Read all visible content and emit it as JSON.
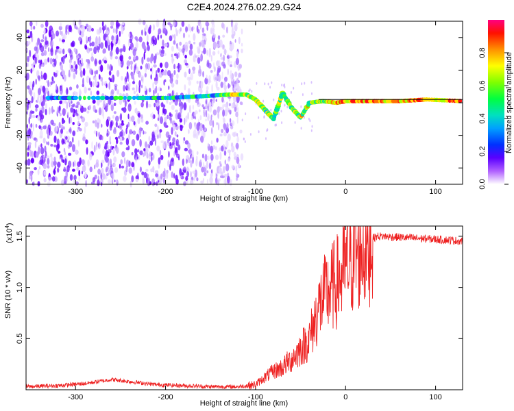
{
  "title": "C2E4.2024.276.02.29.G24",
  "chart_data": [
    {
      "type": "heatmap",
      "xlabel": "Height of straight line (km)",
      "ylabel": "Frequency (Hz)",
      "xlim": [
        -355,
        130
      ],
      "ylim": [
        -50,
        50
      ],
      "x_ticks": [
        -300,
        -200,
        -100,
        0,
        100
      ],
      "x_tick_labels": [
        "-300",
        "-200",
        "-100",
        "0",
        "100"
      ],
      "y_ticks": [
        -40,
        -20,
        0,
        20,
        40
      ],
      "y_tick_labels": [
        "-40",
        "-20",
        "0",
        "20",
        "40"
      ],
      "colorbar": {
        "label": "Normalized spectral amplitude",
        "range": [
          0,
          1
        ],
        "ticks": [
          0.0,
          0.2,
          0.4,
          0.6,
          0.8
        ],
        "tick_labels": [
          "0.0",
          "0.2",
          "0.4",
          "0.6",
          "0.8"
        ],
        "colormap": "rainbow"
      },
      "noise_region_x": [
        -355,
        -115
      ],
      "signal_track": [
        {
          "x": -330,
          "y": 3
        },
        {
          "x": -300,
          "y": 3
        },
        {
          "x": -230,
          "y": 3
        },
        {
          "x": -195,
          "y": 3
        },
        {
          "x": -160,
          "y": 4
        },
        {
          "x": -130,
          "y": 5
        },
        {
          "x": -110,
          "y": 5
        },
        {
          "x": -100,
          "y": 2
        },
        {
          "x": -90,
          "y": -4
        },
        {
          "x": -80,
          "y": -10
        },
        {
          "x": -70,
          "y": 6
        },
        {
          "x": -60,
          "y": -3
        },
        {
          "x": -50,
          "y": -9
        },
        {
          "x": -40,
          "y": 0
        },
        {
          "x": -25,
          "y": 1
        },
        {
          "x": -10,
          "y": 0
        },
        {
          "x": 0,
          "y": 1
        },
        {
          "x": 30,
          "y": 1
        },
        {
          "x": 60,
          "y": 1
        },
        {
          "x": 90,
          "y": 2
        },
        {
          "x": 130,
          "y": 1
        }
      ]
    },
    {
      "type": "line",
      "xlabel": "Height of straight line (km)",
      "ylabel": "SNR (10 * v/v)",
      "scale_label": "(x10",
      "scale_exponent": "4",
      "scale_label_close": ")",
      "xlim": [
        -355,
        130
      ],
      "ylim": [
        0,
        1.6
      ],
      "x_ticks": [
        -300,
        -200,
        -100,
        0,
        100
      ],
      "x_tick_labels": [
        "-300",
        "-200",
        "-100",
        "0",
        "100"
      ],
      "y_ticks": [
        0.5,
        1.0,
        1.5
      ],
      "y_tick_labels": [
        "0.5",
        "1.0",
        "1.5"
      ],
      "color": "#ee2222",
      "series": [
        {
          "x": [
            -355,
            -320,
            -290,
            -260,
            -240,
            -210,
            -180,
            -150,
            -120,
            -100,
            -90,
            -80,
            -70,
            -60,
            -50,
            -40,
            -35,
            -30,
            -25,
            -20,
            -15,
            -10,
            -5,
            0,
            5,
            10,
            15,
            20,
            25,
            30,
            35,
            40,
            60,
            80,
            100,
            120,
            130
          ],
          "y": [
            0.03,
            0.04,
            0.06,
            0.1,
            0.08,
            0.05,
            0.04,
            0.03,
            0.03,
            0.05,
            0.12,
            0.18,
            0.22,
            0.3,
            0.4,
            0.5,
            0.65,
            0.8,
            0.9,
            0.95,
            1.0,
            1.05,
            1.1,
            1.2,
            1.25,
            1.3,
            1.35,
            1.4,
            1.45,
            1.48,
            1.5,
            1.5,
            1.49,
            1.48,
            1.47,
            1.46,
            1.45
          ]
        }
      ]
    }
  ]
}
